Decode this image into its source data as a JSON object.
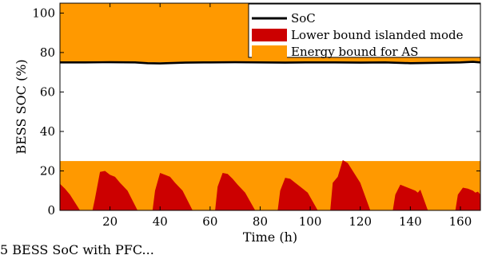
{
  "chart_data": {
    "type": "area",
    "xlabel": "Time (h)",
    "ylabel": "BESS SOC (%)",
    "xlim": [
      0,
      168
    ],
    "ylim": [
      0,
      105
    ],
    "x_ticks": [
      20,
      40,
      60,
      80,
      100,
      120,
      140,
      160
    ],
    "y_ticks": [
      0,
      20,
      40,
      60,
      80,
      100
    ],
    "grid": false,
    "legend_position": "top-right",
    "colors": {
      "soc": "#000000",
      "lower_bound": "#cc0000",
      "energy_bound": "#ff9900"
    },
    "series": [
      {
        "name": "SoC",
        "kind": "line",
        "x": [
          0,
          10,
          20,
          30,
          35,
          40,
          50,
          60,
          70,
          80,
          90,
          100,
          110,
          120,
          130,
          140,
          150,
          160,
          165,
          168
        ],
        "y": [
          75,
          75,
          75.1,
          75,
          74.6,
          74.5,
          74.9,
          75,
          75.1,
          75,
          74.9,
          75,
          75,
          74.9,
          75,
          74.6,
          74.8,
          75,
          75.3,
          75
        ]
      },
      {
        "name": "Lower bound islanded mode",
        "kind": "area",
        "x": [
          0,
          2,
          4,
          6,
          8,
          13,
          14,
          16,
          18,
          20,
          22,
          24,
          27,
          31,
          37,
          38,
          40,
          42,
          44,
          46,
          49,
          53,
          62,
          63,
          65,
          67,
          69,
          71,
          74,
          78,
          87,
          88,
          90,
          92,
          94,
          96,
          99,
          103,
          108,
          109,
          111,
          113,
          115,
          117,
          120,
          124,
          133,
          134,
          136,
          138,
          140,
          142,
          143,
          144,
          147,
          158,
          159,
          161,
          163,
          165,
          166,
          167,
          168
        ],
        "y": [
          13.5,
          11,
          8,
          4,
          0,
          0,
          6,
          19.5,
          20,
          18,
          17,
          14,
          10,
          0,
          0,
          10,
          19,
          18,
          17,
          14,
          10,
          0,
          0,
          12,
          19,
          18.5,
          16,
          13,
          9,
          0,
          0,
          10,
          16.5,
          16,
          14,
          12,
          9,
          0,
          0,
          14,
          17,
          25.5,
          24,
          20,
          14,
          0,
          0,
          8,
          13,
          12,
          11,
          10,
          9,
          10.5,
          0,
          0,
          8,
          11.5,
          11,
          10,
          9,
          9.5,
          8
        ]
      },
      {
        "name": "Energy bound for AS",
        "kind": "band",
        "bands": [
          [
            0,
            25
          ],
          [
            75,
            105
          ]
        ]
      }
    ]
  },
  "caption": "5    BESS SoC with PFC..."
}
